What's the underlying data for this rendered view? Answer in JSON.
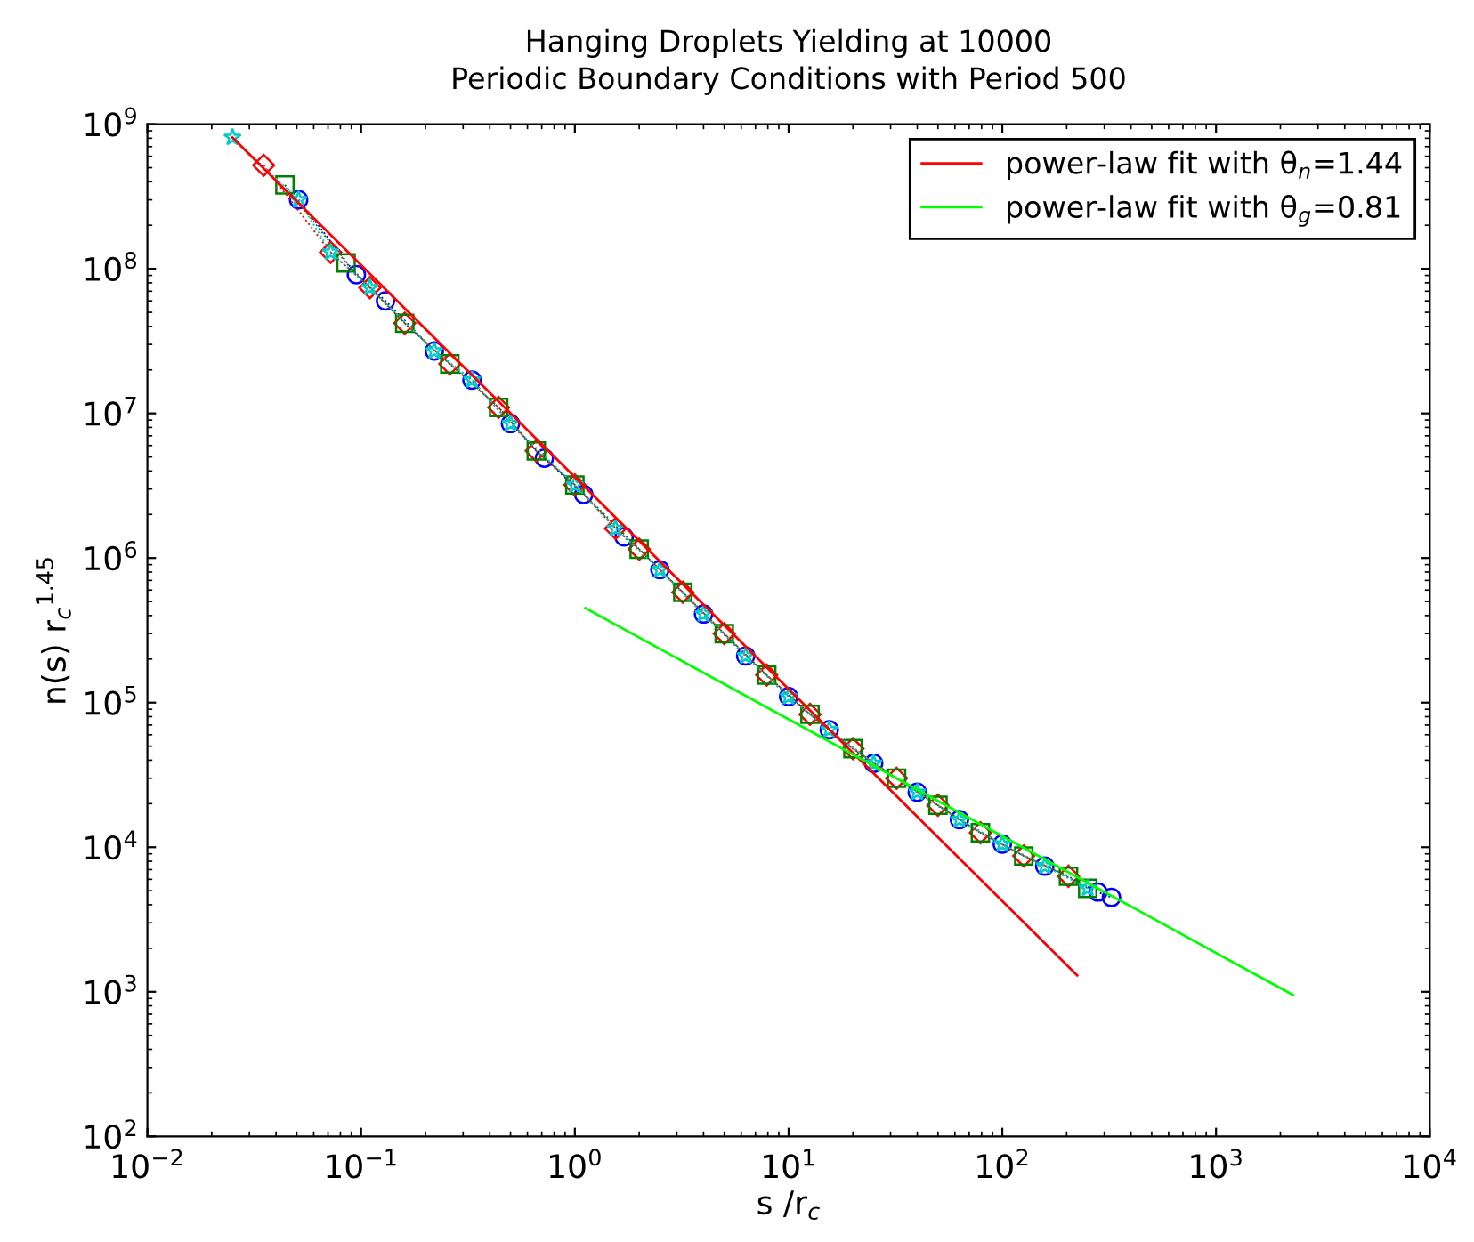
{
  "chart_data": {
    "type": "line",
    "title": "Hanging Droplets Yielding at 10000",
    "subtitle": "Periodic Boundary Conditions with Period 500",
    "xlabel": "s /r$_{c}$",
    "ylabel": "n(s) r$_{c}$$^{1.45}$",
    "log": "xy",
    "grid": false,
    "legend": "top right",
    "line_style": "dotted",
    "xlim": [
      0.01,
      10000
    ],
    "ylim": [
      100,
      1000000000
    ],
    "xticks": [
      {
        "value": 0.01,
        "label": "10$^{−2}$"
      },
      {
        "value": 0.1,
        "label": "10$^{−1}$"
      },
      {
        "value": 1,
        "label": "10$^{0}$"
      },
      {
        "value": 10,
        "label": "10$^{1}$"
      },
      {
        "value": 100,
        "label": "10$^{2}$"
      },
      {
        "value": 1000,
        "label": "10$^{3}$"
      },
      {
        "value": 10000,
        "label": "10$^{4}$"
      }
    ],
    "yticks": [
      {
        "value": 100,
        "label": "10$^{2}$"
      },
      {
        "value": 1000,
        "label": "10$^{3}$"
      },
      {
        "value": 10000,
        "label": "10$^{4}$"
      },
      {
        "value": 100000,
        "label": "10$^{5}$"
      },
      {
        "value": 1000000,
        "label": "10$^{6}$"
      },
      {
        "value": 10000000,
        "label": "10$^{7}$"
      },
      {
        "value": 100000000,
        "label": "10$^{8}$"
      },
      {
        "value": 1000000000,
        "label": "10$^{9}$"
      }
    ],
    "series": [
      {
        "color": "#0000ff",
        "marker": "circle",
        "x": [
          0.051,
          0.095,
          0.13,
          0.22,
          0.33,
          0.5,
          0.72,
          1.1,
          1.7,
          2.5,
          4.0,
          6.3,
          10,
          15.5,
          25,
          40,
          63,
          100,
          158,
          280,
          324
        ],
        "values": [
          300000000,
          91000000,
          60000000,
          27000000,
          17000000,
          8500000,
          4900000,
          2750000,
          1400000,
          830000,
          410000,
          210000,
          110000,
          65000,
          38000,
          24000,
          15500,
          10500,
          7400,
          4900,
          4500
        ]
      },
      {
        "color": "#ff0000",
        "marker": "diamond",
        "x": [
          0.035,
          0.072,
          0.11,
          0.16,
          0.26,
          0.44,
          0.66,
          1.0,
          1.55,
          2.0,
          3.2,
          5.0,
          7.9,
          12.6,
          20,
          32,
          50,
          79,
          126,
          204
        ],
        "values": [
          520000000,
          130000000,
          74000000,
          42000000,
          22000000,
          11000000,
          5500000,
          3200000,
          1600000,
          1150000,
          580000,
          300000,
          155000,
          83000,
          48000,
          30000,
          19500,
          12600,
          8700,
          6300
        ]
      },
      {
        "color": "#008000",
        "marker": "square",
        "x": [
          0.044,
          0.085,
          0.16,
          0.26,
          0.44,
          0.66,
          1.0,
          2.0,
          3.2,
          5.0,
          7.9,
          12.6,
          20,
          32,
          50,
          79,
          126,
          204,
          251
        ],
        "values": [
          380000000,
          110000000,
          42000000,
          22000000,
          11000000,
          5500000,
          3200000,
          1150000,
          580000,
          300000,
          155000,
          83000,
          48000,
          30000,
          19500,
          12600,
          8700,
          6300,
          5200
        ]
      },
      {
        "color": "#00cccc",
        "marker": "star",
        "x": [
          0.025,
          0.051,
          0.072,
          0.11,
          0.22,
          0.33,
          0.5,
          1.0,
          1.55,
          2.5,
          4.0,
          6.3,
          10,
          15.5,
          25,
          40,
          63,
          100,
          158,
          251
        ],
        "values": [
          810000000,
          300000000,
          130000000,
          74000000,
          27000000,
          17000000,
          8500000,
          3200000,
          1600000,
          830000,
          410000,
          210000,
          110000,
          65000,
          38000,
          24000,
          15500,
          10500,
          7400,
          5200
        ]
      },
      {
        "type": "line",
        "name": "power-law fit with θ$_{n}$=1.44",
        "color": "#ff0000",
        "line_style": "solid",
        "marker": "none",
        "x": [
          0.025,
          224
        ],
        "values": [
          810000000,
          1300
        ]
      },
      {
        "type": "line",
        "name": "power-law fit with θ$_{g}$=0.81",
        "color": "#00ff00",
        "line_style": "solid",
        "marker": "none",
        "x": [
          1.12,
          2290
        ],
        "values": [
          450000,
          950
        ]
      }
    ]
  }
}
